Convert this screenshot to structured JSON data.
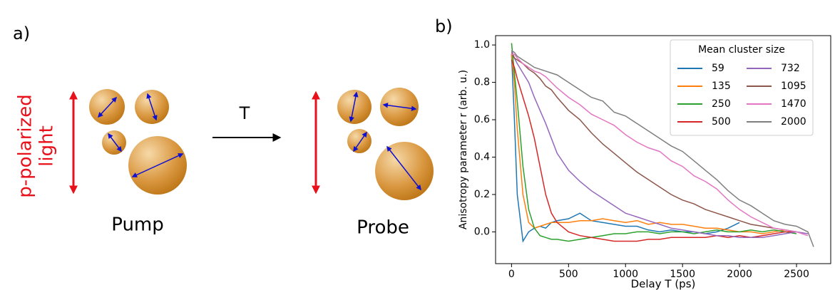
{
  "panel_a": {
    "label": "a)",
    "light_label": [
      "p-polarized",
      "light"
    ],
    "step_label": "T",
    "pump_label": "Pump",
    "probe_label": "Probe"
  },
  "chart_data": {
    "type": "line",
    "label": "b)",
    "xlabel": "Delay T (ps)",
    "ylabel": "Anisotropy parameter r (arb. u.)",
    "legend_title": "Mean cluster size",
    "legend": "upper right",
    "grid": false,
    "xlim": [
      -140,
      2800
    ],
    "ylim": [
      -0.17,
      1.05
    ],
    "xticks": [
      0,
      500,
      1000,
      1500,
      2000,
      2500
    ],
    "yticks": [
      {
        "value": 0,
        "label": "0.0"
      },
      {
        "value": 0.2,
        "label": "0.2"
      },
      {
        "value": 0.4,
        "label": "0.4"
      },
      {
        "value": 0.6,
        "label": "0.6"
      },
      {
        "value": 0.8,
        "label": "0.8"
      },
      {
        "value": 1,
        "label": "1.0"
      }
    ],
    "x": [
      0,
      25,
      50,
      100,
      150,
      200,
      250,
      300,
      350,
      400,
      500,
      600,
      700,
      800,
      900,
      1000,
      1100,
      1200,
      1300,
      1400,
      1500,
      1600,
      1700,
      1800,
      1900,
      2000,
      2100,
      2200,
      2300,
      2400,
      2500,
      2600,
      2650
    ],
    "series": [
      {
        "name": "59",
        "color": "#1f77b4",
        "values": [
          0.95,
          0.6,
          0.2,
          -0.05,
          0.0,
          0.02,
          0.03,
          0.02,
          0.05,
          0.06,
          0.07,
          0.1,
          0.06,
          0.05,
          0.04,
          0.03,
          0.03,
          0.01,
          0.0,
          0.01,
          0.0,
          0.0,
          -0.01,
          0.0,
          0.02,
          0.05,
          null,
          null,
          null,
          null,
          null,
          null,
          null
        ]
      },
      {
        "name": "135",
        "color": "#ff7f0e",
        "values": [
          0.95,
          0.8,
          0.55,
          0.2,
          0.05,
          0.02,
          0.03,
          0.04,
          0.05,
          0.05,
          0.05,
          0.06,
          0.06,
          0.07,
          0.06,
          0.05,
          0.06,
          0.04,
          0.05,
          0.04,
          0.04,
          0.03,
          0.02,
          0.02,
          0.01,
          0.0,
          0.0,
          -0.01,
          0.0,
          0.01,
          0.0,
          null,
          null
        ]
      },
      {
        "name": "250",
        "color": "#2ca02c",
        "values": [
          1.01,
          0.85,
          0.7,
          0.35,
          0.12,
          0.02,
          -0.02,
          -0.03,
          -0.04,
          -0.04,
          -0.05,
          -0.04,
          -0.03,
          -0.02,
          -0.01,
          -0.01,
          0.0,
          0.0,
          -0.01,
          0.0,
          0.0,
          -0.01,
          0.0,
          0.01,
          0.0,
          0.0,
          0.01,
          0.0,
          0.01,
          0.0,
          -0.01,
          null,
          null
        ]
      },
      {
        "name": "500",
        "color": "#d62728",
        "values": [
          0.92,
          0.88,
          0.82,
          0.72,
          0.62,
          0.5,
          0.35,
          0.2,
          0.1,
          0.05,
          0.0,
          -0.02,
          -0.03,
          -0.04,
          -0.05,
          -0.05,
          -0.05,
          -0.04,
          -0.04,
          -0.03,
          -0.03,
          -0.03,
          -0.03,
          -0.02,
          -0.03,
          -0.02,
          -0.03,
          -0.02,
          -0.01,
          0.0,
          0.0,
          null,
          null
        ]
      },
      {
        "name": "732",
        "color": "#9467bd",
        "values": [
          0.97,
          0.93,
          0.9,
          0.85,
          0.8,
          0.72,
          0.65,
          0.58,
          0.5,
          0.42,
          0.33,
          0.27,
          0.22,
          0.18,
          0.14,
          0.1,
          0.08,
          0.06,
          0.04,
          0.02,
          0.01,
          0.0,
          -0.01,
          -0.02,
          -0.02,
          -0.03,
          -0.03,
          -0.03,
          -0.02,
          -0.01,
          0.0,
          -0.01,
          null
        ]
      },
      {
        "name": "1095",
        "color": "#8c564b",
        "values": [
          0.96,
          0.93,
          0.92,
          0.9,
          0.87,
          0.85,
          0.82,
          0.78,
          0.76,
          0.72,
          0.65,
          0.6,
          0.53,
          0.47,
          0.42,
          0.37,
          0.32,
          0.28,
          0.24,
          0.2,
          0.17,
          0.15,
          0.12,
          0.1,
          0.08,
          0.06,
          0.04,
          0.03,
          0.02,
          0.01,
          0.0,
          null,
          null
        ]
      },
      {
        "name": "1470",
        "color": "#e377c2",
        "values": [
          0.95,
          0.95,
          0.93,
          0.9,
          0.88,
          0.86,
          0.85,
          0.83,
          0.8,
          0.77,
          0.72,
          0.68,
          0.63,
          0.6,
          0.57,
          0.52,
          0.48,
          0.45,
          0.43,
          0.38,
          0.35,
          0.3,
          0.27,
          0.23,
          0.17,
          0.12,
          0.08,
          0.05,
          0.02,
          0.01,
          0.0,
          -0.02,
          null
        ]
      },
      {
        "name": "2000",
        "color": "#7f7f7f",
        "values": [
          0.97,
          0.96,
          0.94,
          0.92,
          0.9,
          0.88,
          0.87,
          0.86,
          0.85,
          0.84,
          0.8,
          0.76,
          0.72,
          0.7,
          0.64,
          0.62,
          0.58,
          0.54,
          0.5,
          0.46,
          0.43,
          0.38,
          0.33,
          0.28,
          0.22,
          0.17,
          0.14,
          0.1,
          0.06,
          0.04,
          0.03,
          0.0,
          -0.08
        ]
      }
    ]
  }
}
